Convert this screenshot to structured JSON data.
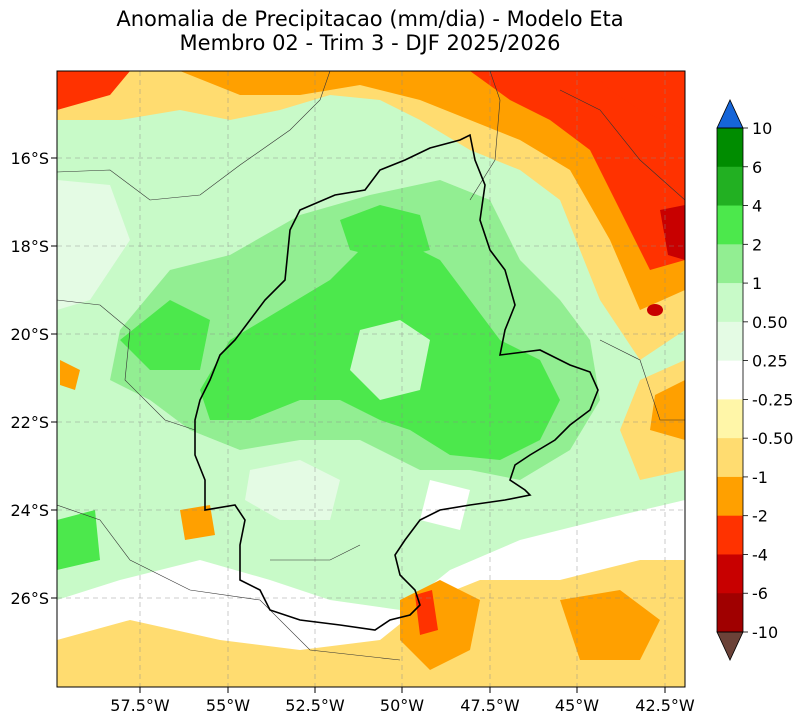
{
  "title_line1": "Anomalia de Precipitacao (mm/dia) - Modelo Eta",
  "title_line2": "Membro 02 - Trim 3 - DJF 2025/2026",
  "map": {
    "lat_labels": [
      "16°S",
      "18°S",
      "20°S",
      "22°S",
      "24°S",
      "26°S"
    ],
    "lon_labels": [
      "57.5°W",
      "55°W",
      "52.5°W",
      "50°W",
      "47.5°W",
      "45°W",
      "42.5°W"
    ]
  },
  "colorbar": {
    "labels": [
      "10",
      "6",
      "4",
      "2",
      "1",
      "0.50",
      "0.25",
      "-0.25",
      "-0.50",
      "-1",
      "-2",
      "-4",
      "-6",
      "-10"
    ],
    "colors": {
      "over": "#1565d8",
      "under": "#6b4238",
      "bins": [
        "#008c00",
        "#22b022",
        "#4ce84c",
        "#92ee92",
        "#c8fac8",
        "#e4fbe4",
        "#ffffff",
        "#fff6a8",
        "#ffdc70",
        "#ffa000",
        "#ff3200",
        "#c80000",
        "#a00000"
      ]
    }
  }
}
